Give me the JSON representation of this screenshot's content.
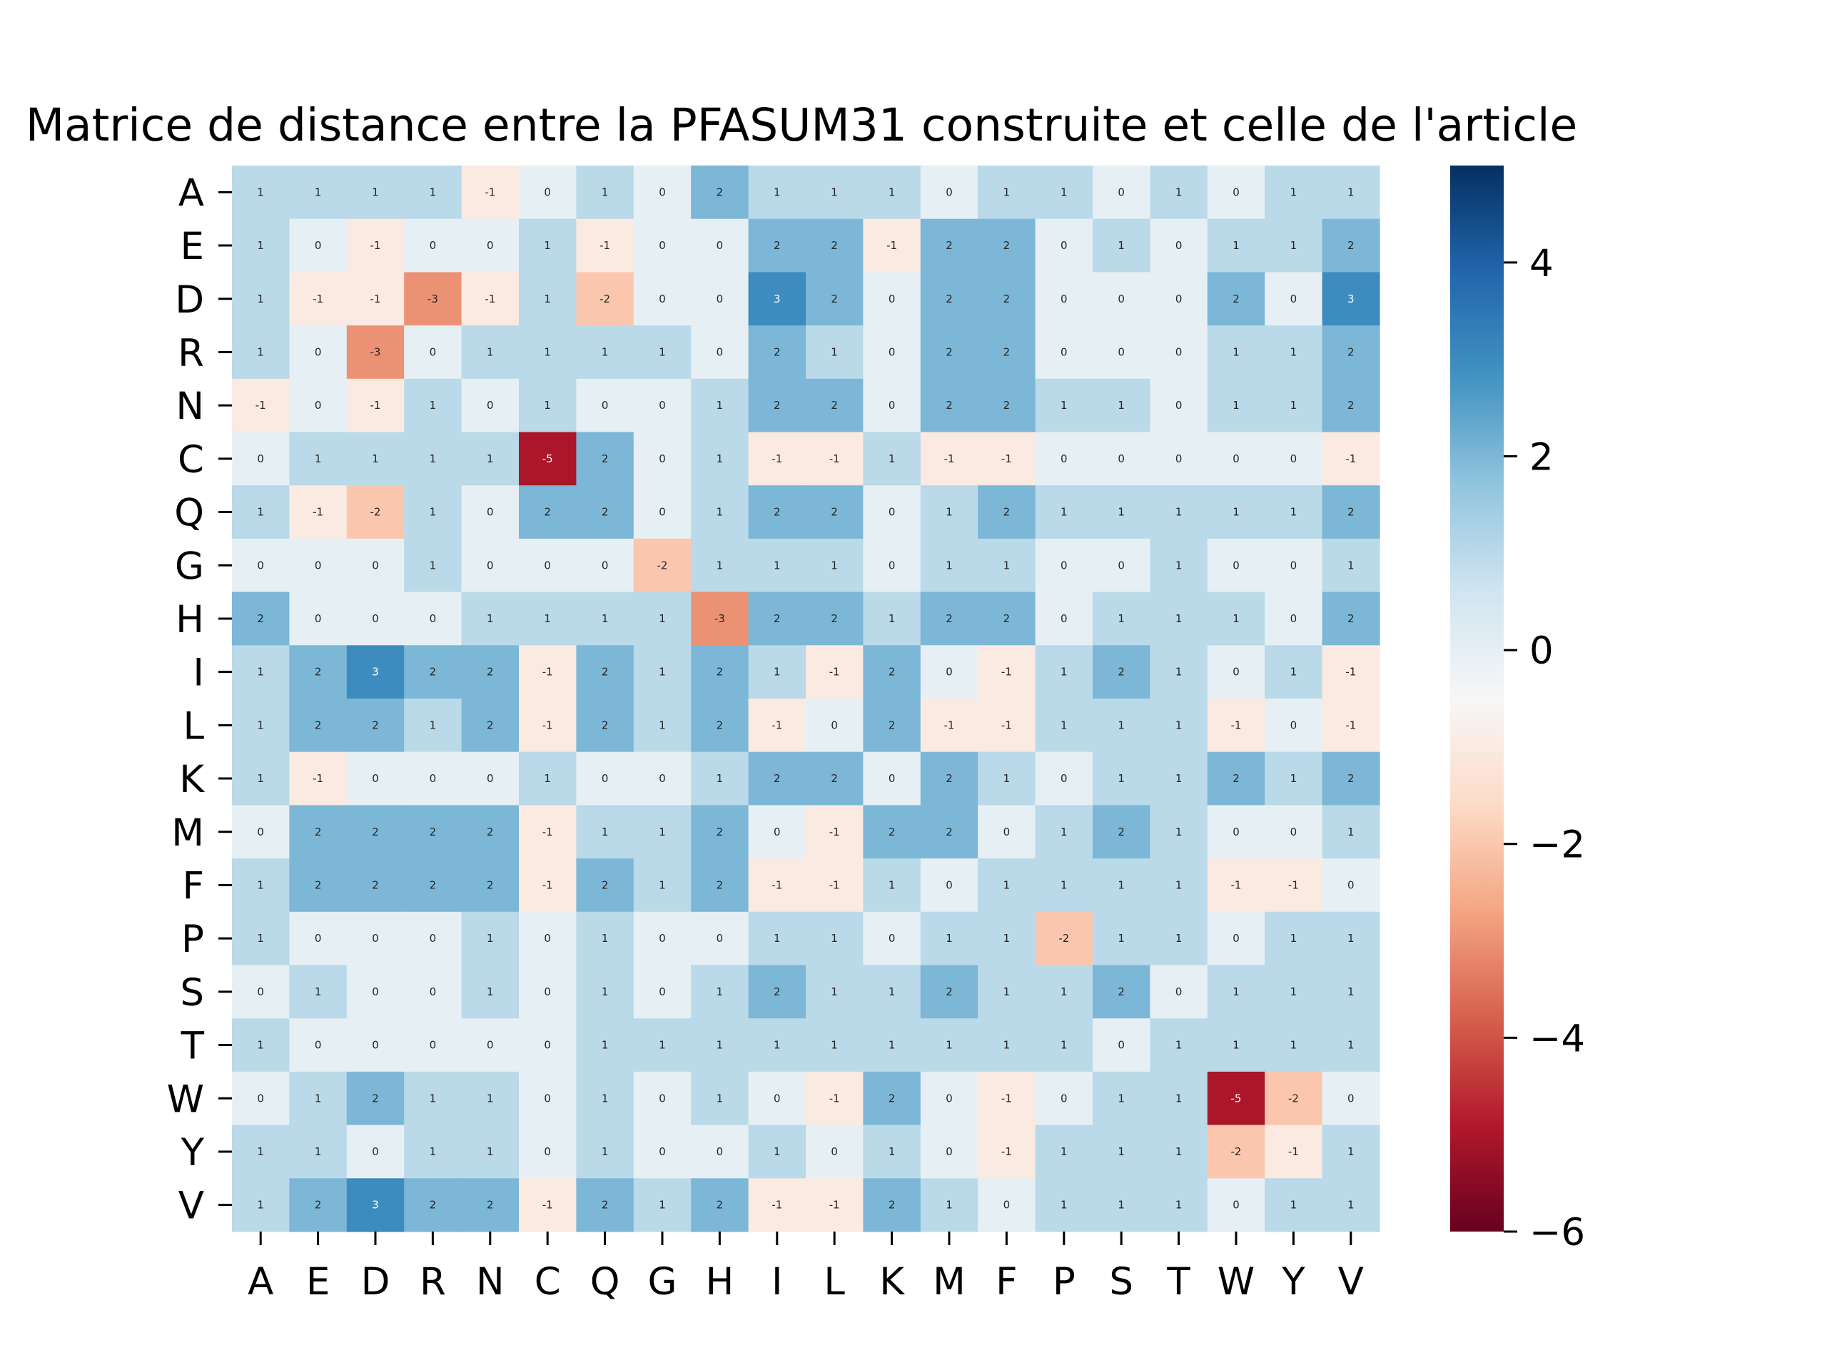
{
  "chart_data": {
    "type": "heatmap",
    "title": "Matrice de distance entre la PFASUM31 construite et celle de l'article",
    "xlabel": "",
    "ylabel": "",
    "x_labels": [
      "A",
      "E",
      "D",
      "R",
      "N",
      "C",
      "Q",
      "G",
      "H",
      "I",
      "L",
      "K",
      "M",
      "F",
      "P",
      "S",
      "T",
      "W",
      "Y",
      "V"
    ],
    "y_labels": [
      "A",
      "E",
      "D",
      "R",
      "N",
      "C",
      "Q",
      "G",
      "H",
      "I",
      "L",
      "K",
      "M",
      "F",
      "P",
      "S",
      "T",
      "W",
      "Y",
      "V"
    ],
    "values": [
      [
        1,
        1,
        1,
        1,
        -1,
        0,
        1,
        0,
        2,
        1,
        1,
        1,
        0,
        1,
        1,
        0,
        1,
        0,
        1,
        1
      ],
      [
        1,
        0,
        -1,
        0,
        0,
        1,
        -1,
        0,
        0,
        2,
        2,
        -1,
        2,
        2,
        0,
        1,
        0,
        1,
        1,
        2
      ],
      [
        1,
        -1,
        -1,
        -3,
        -1,
        1,
        -2,
        0,
        0,
        3,
        2,
        0,
        2,
        2,
        0,
        0,
        0,
        2,
        0,
        3
      ],
      [
        1,
        0,
        -3,
        0,
        1,
        1,
        1,
        1,
        0,
        2,
        1,
        0,
        2,
        2,
        0,
        0,
        0,
        1,
        1,
        2
      ],
      [
        -1,
        0,
        -1,
        1,
        0,
        1,
        0,
        0,
        1,
        2,
        2,
        0,
        2,
        2,
        1,
        1,
        0,
        1,
        1,
        2
      ],
      [
        0,
        1,
        1,
        1,
        1,
        -5,
        2,
        0,
        1,
        -1,
        -1,
        1,
        -1,
        -1,
        0,
        0,
        0,
        0,
        0,
        -1
      ],
      [
        1,
        -1,
        -2,
        1,
        0,
        2,
        2,
        0,
        1,
        2,
        2,
        0,
        1,
        2,
        1,
        1,
        1,
        1,
        1,
        2
      ],
      [
        0,
        0,
        0,
        1,
        0,
        0,
        0,
        -2,
        1,
        1,
        1,
        0,
        1,
        1,
        0,
        0,
        1,
        0,
        0,
        1
      ],
      [
        2,
        0,
        0,
        0,
        1,
        1,
        1,
        1,
        -3,
        2,
        2,
        1,
        2,
        2,
        0,
        1,
        1,
        1,
        0,
        2
      ],
      [
        1,
        2,
        3,
        2,
        2,
        -1,
        2,
        1,
        2,
        1,
        -1,
        2,
        0,
        -1,
        1,
        2,
        1,
        0,
        1,
        -1
      ],
      [
        1,
        2,
        2,
        1,
        2,
        -1,
        2,
        1,
        2,
        -1,
        0,
        2,
        -1,
        -1,
        1,
        1,
        1,
        -1,
        0,
        -1
      ],
      [
        1,
        -1,
        0,
        0,
        0,
        1,
        0,
        0,
        1,
        2,
        2,
        0,
        2,
        1,
        0,
        1,
        1,
        2,
        1,
        2
      ],
      [
        0,
        2,
        2,
        2,
        2,
        -1,
        1,
        1,
        2,
        0,
        -1,
        2,
        2,
        0,
        1,
        2,
        1,
        0,
        0,
        1
      ],
      [
        1,
        2,
        2,
        2,
        2,
        -1,
        2,
        1,
        2,
        -1,
        -1,
        1,
        0,
        1,
        1,
        1,
        1,
        -1,
        -1,
        0
      ],
      [
        1,
        0,
        0,
        0,
        1,
        0,
        1,
        0,
        0,
        1,
        1,
        0,
        1,
        1,
        -2,
        1,
        1,
        0,
        1,
        1
      ],
      [
        0,
        1,
        0,
        0,
        1,
        0,
        1,
        0,
        1,
        2,
        1,
        1,
        2,
        1,
        1,
        2,
        0,
        1,
        1,
        1
      ],
      [
        1,
        0,
        0,
        0,
        0,
        0,
        1,
        1,
        1,
        1,
        1,
        1,
        1,
        1,
        1,
        0,
        1,
        1,
        1,
        1
      ],
      [
        0,
        1,
        2,
        1,
        1,
        0,
        1,
        0,
        1,
        0,
        -1,
        2,
        0,
        -1,
        0,
        1,
        1,
        -5,
        -2,
        0
      ],
      [
        1,
        1,
        0,
        1,
        1,
        0,
        1,
        0,
        0,
        1,
        0,
        1,
        0,
        -1,
        1,
        1,
        1,
        -2,
        -1,
        1
      ],
      [
        1,
        2,
        3,
        2,
        2,
        -1,
        2,
        1,
        2,
        -1,
        -1,
        2,
        1,
        0,
        1,
        1,
        1,
        0,
        1,
        1
      ]
    ],
    "vmin": -6,
    "vmax": 5,
    "colormap": "RdBu",
    "colorbar": {
      "ticks": [
        4,
        2,
        0,
        -2,
        -4,
        -6
      ],
      "tick_labels": [
        "4",
        "2",
        "0",
        "−2",
        "−4",
        "−6"
      ]
    },
    "annotate": true,
    "grid": false,
    "legend": "none"
  }
}
